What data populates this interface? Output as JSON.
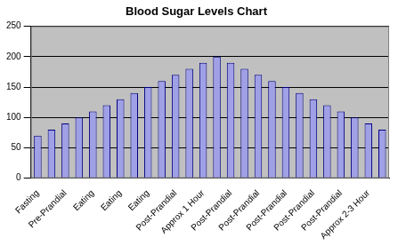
{
  "chart_data": {
    "type": "bar",
    "title": "Blood Sugar Levels Chart",
    "categories": [
      "Fasting",
      null,
      "Pre-Prandial",
      null,
      "Eating",
      null,
      "Eating",
      null,
      "Eating",
      null,
      "Post-Prandial",
      null,
      "Approx 1 Hour",
      null,
      "Post-Prandial",
      null,
      "Post-Prandial",
      null,
      "Post-Prandial",
      null,
      "Post-Prandial",
      null,
      "Post-Prandial",
      null,
      "Approx 2-3 Hour",
      null
    ],
    "values": [
      70,
      80,
      90,
      100,
      110,
      120,
      130,
      140,
      150,
      160,
      170,
      180,
      190,
      200,
      190,
      180,
      170,
      160,
      150,
      140,
      130,
      120,
      110,
      100,
      90,
      80
    ],
    "color": "#a0a0e6",
    "ylim": [
      0,
      250
    ],
    "yticks": [
      0,
      50,
      100,
      150,
      200,
      250
    ],
    "grid": true
  }
}
